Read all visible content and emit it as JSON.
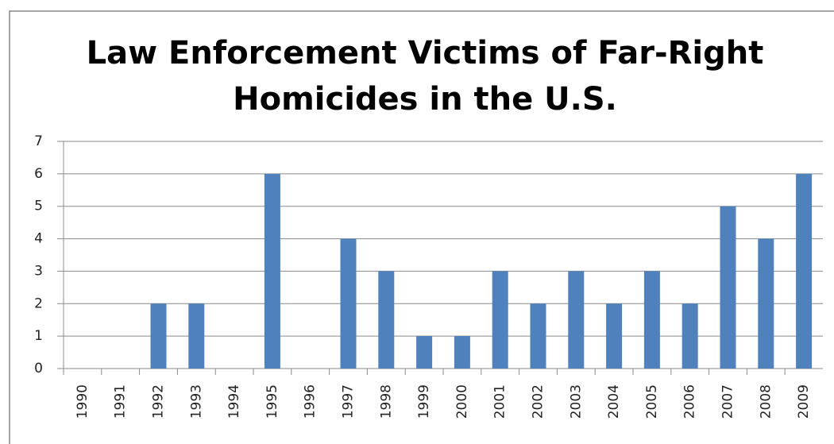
{
  "chart_data": {
    "type": "bar",
    "title": "Law Enforcement Victims of Far-Right Homicides in the U.S.",
    "categories": [
      "1990",
      "1991",
      "1992",
      "1993",
      "1994",
      "1995",
      "1996",
      "1997",
      "1998",
      "1999",
      "2000",
      "2001",
      "2002",
      "2003",
      "2004",
      "2005",
      "2006",
      "2007",
      "2008",
      "2009"
    ],
    "values": [
      0,
      0,
      2,
      2,
      0,
      6,
      0,
      4,
      3,
      1,
      1,
      3,
      2,
      3,
      2,
      3,
      2,
      5,
      4,
      6
    ],
    "color": "#4f81bd",
    "ylim": [
      0,
      7
    ],
    "yticks": [
      0,
      1,
      2,
      3,
      4,
      5,
      6,
      7
    ],
    "grid": true
  }
}
